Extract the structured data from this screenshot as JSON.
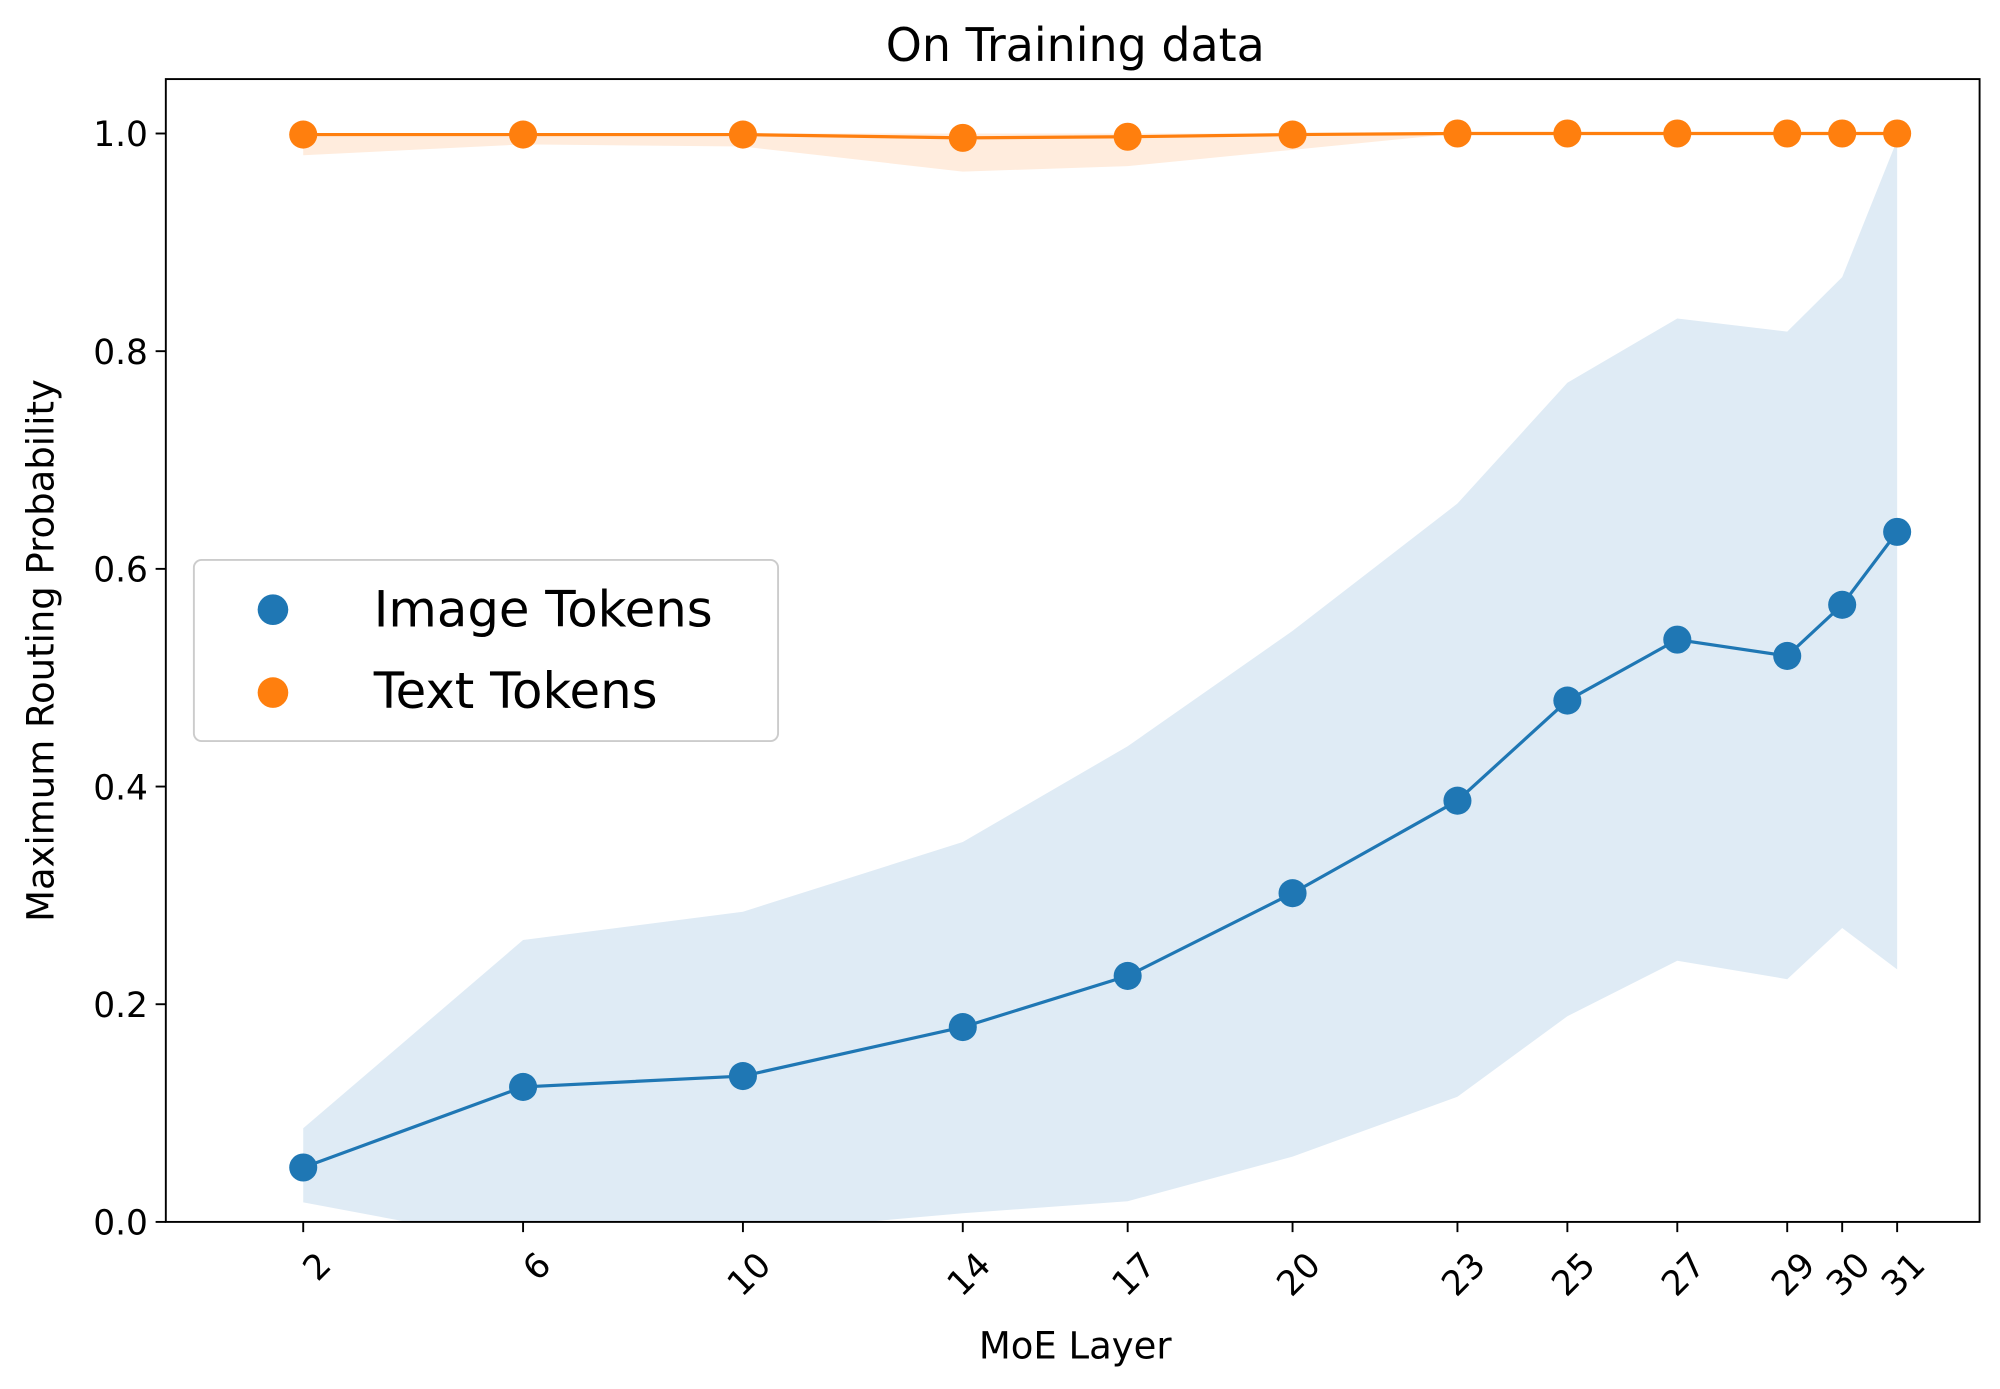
{
  "chart_data": {
    "type": "line",
    "title": "On Training data",
    "xlabel": "MoE Layer",
    "ylabel": "Maximum Routing Probability",
    "x": [
      2,
      6,
      10,
      14,
      17,
      20,
      23,
      25,
      27,
      29,
      30,
      31
    ],
    "x_tick_labels": [
      "2",
      "6",
      "10",
      "14",
      "17",
      "20",
      "23",
      "25",
      "27",
      "29",
      "30",
      "31"
    ],
    "xlim": [
      -0.5,
      32.5
    ],
    "ylim": [
      0,
      1.05
    ],
    "y_ticks": [
      0.0,
      0.2,
      0.4,
      0.6,
      0.8,
      1.0
    ],
    "y_tick_labels": [
      "0.0",
      "0.2",
      "0.4",
      "0.6",
      "0.8",
      "1.0"
    ],
    "grid": false,
    "legend_position": "center-left",
    "series": [
      {
        "name": "Image Tokens",
        "color": "#1f77b4",
        "values": [
          0.05,
          0.124,
          0.134,
          0.179,
          0.226,
          0.302,
          0.387,
          0.479,
          0.535,
          0.52,
          0.567,
          0.634
        ],
        "band_lower": [
          0.018,
          -0.02,
          -0.01,
          0.008,
          0.019,
          0.06,
          0.115,
          0.189,
          0.24,
          0.223,
          0.27,
          0.232
        ],
        "band_upper": [
          0.086,
          0.259,
          0.285,
          0.349,
          0.437,
          0.543,
          0.66,
          0.771,
          0.83,
          0.818,
          0.868,
          0.994
        ]
      },
      {
        "name": "Text Tokens",
        "color": "#ff7f0e",
        "values": [
          0.999,
          0.999,
          0.999,
          0.996,
          0.997,
          0.999,
          1.0,
          1.0,
          1.0,
          1.0,
          1.0,
          1.0
        ],
        "band_lower": [
          0.98,
          0.99,
          0.988,
          0.965,
          0.97,
          0.985,
          1.0,
          1.0,
          1.0,
          1.0,
          1.0,
          1.0
        ],
        "band_upper": [
          1.0,
          1.0,
          1.0,
          1.0,
          1.0,
          1.0,
          1.0,
          1.0,
          1.0,
          1.0,
          1.0,
          1.0
        ]
      }
    ]
  }
}
